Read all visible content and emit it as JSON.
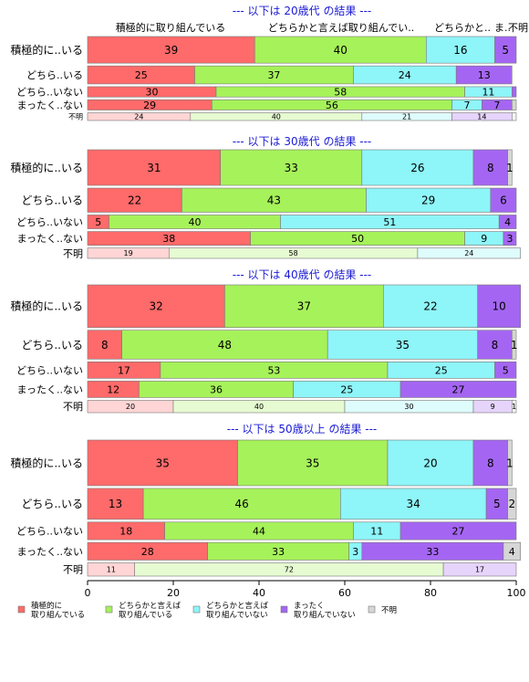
{
  "colors": {
    "積極的に取り組んでいる": "#ff6a6a",
    "どちらかと言えば取り組んでいる": "#a6f25a",
    "どちらかと言えば取り組んでいない": "#8ef5f8",
    "まったく取り組んでいない": "#a466f2",
    "不明": "#d6d6d6",
    "title": "#1a1ad6"
  },
  "column_headers": [
    "積極的に取り組んでいる",
    "どちらかと言えば取り組んでい..",
    "どちらかと..",
    "ま..",
    "不明"
  ],
  "chart_data": {
    "type": "bar",
    "orientation": "horizontal",
    "stacked": true,
    "xlim": [
      0,
      100
    ],
    "x_ticks": [
      0,
      20,
      40,
      60,
      80,
      100
    ],
    "legend": {
      "placement": "bottom",
      "entries": [
        {
          "key": "積極的に取り組んでいる",
          "lines": [
            "積極的に",
            "取り組んでいる"
          ]
        },
        {
          "key": "どちらかと言えば取り組んでいる",
          "lines": [
            "どちらかと言えば",
            "取り組んでいる"
          ]
        },
        {
          "key": "どちらかと言えば取り組んでいない",
          "lines": [
            "どちらかと言えば",
            "取り組んでいない"
          ]
        },
        {
          "key": "まったく取り組んでいない",
          "lines": [
            "まったく",
            "取り組んでいない"
          ]
        },
        {
          "key": "不明",
          "lines": [
            "不明"
          ]
        }
      ]
    },
    "series_keys": [
      "積極的に取り組んでいる",
      "どちらかと言えば取り組んでいる",
      "どちらかと言えば取り組んでいない",
      "まったく取り組んでいない",
      "不明"
    ],
    "panels": [
      {
        "title": "--- 以下は 20歳代 の結果 ---",
        "rows": [
          {
            "label": "積極的に..いる",
            "weight": 0.31,
            "values": [
              39,
              40,
              16,
              5,
              0
            ],
            "labels": [
              "39",
              "40",
              "16",
              "5",
              ""
            ]
          },
          {
            "label": "どちら..いる",
            "weight": 0.21,
            "values": [
              25,
              37,
              24,
              13,
              0
            ],
            "labels": [
              "25",
              "37",
              "24",
              "13",
              ""
            ]
          },
          {
            "label": "どちら..いない",
            "weight": 0.12,
            "values": [
              30,
              58,
              11,
              1,
              0
            ],
            "labels": [
              "30",
              "58",
              "11",
              "",
              ""
            ]
          },
          {
            "label": "まったく..ない",
            "weight": 0.12,
            "values": [
              29,
              56,
              7,
              7,
              1
            ],
            "labels": [
              "29",
              "56",
              "7",
              "7",
              ""
            ]
          },
          {
            "label": "不明",
            "weight": 0.09,
            "values": [
              24,
              40,
              21,
              14,
              1
            ],
            "labels": [
              "24",
              "40",
              "21",
              "14",
              ""
            ]
          }
        ]
      },
      {
        "title": "--- 以下は 30歳代 の結果 ---",
        "rows": [
          {
            "label": "積極的に..いる",
            "weight": 0.31,
            "values": [
              31,
              33,
              26,
              8,
              1
            ],
            "labels": [
              "31",
              "33",
              "26",
              "8",
              "1"
            ]
          },
          {
            "label": "どちら..いる",
            "weight": 0.21,
            "values": [
              22,
              43,
              29,
              6,
              0
            ],
            "labels": [
              "22",
              "43",
              "29",
              "6",
              ""
            ]
          },
          {
            "label": "どちら..いない",
            "weight": 0.12,
            "values": [
              5,
              40,
              51,
              4,
              0
            ],
            "labels": [
              "5",
              "40",
              "51",
              "4",
              ""
            ]
          },
          {
            "label": "まったく..ない",
            "weight": 0.12,
            "values": [
              38,
              50,
              9,
              3,
              0
            ],
            "labels": [
              "38",
              "50",
              "9",
              "3",
              ""
            ]
          },
          {
            "label": "不明",
            "weight": 0.09,
            "values": [
              19,
              58,
              24,
              0,
              0
            ],
            "labels": [
              "19",
              "58",
              "24",
              "",
              ""
            ]
          }
        ]
      },
      {
        "title": "--- 以下は 40歳代 の結果 ---",
        "rows": [
          {
            "label": "積極的に..いる",
            "weight": 0.31,
            "values": [
              32,
              37,
              22,
              10,
              0
            ],
            "labels": [
              "32",
              "37",
              "22",
              "10",
              ""
            ]
          },
          {
            "label": "どちら..いる",
            "weight": 0.21,
            "values": [
              8,
              48,
              35,
              8,
              1
            ],
            "labels": [
              "8",
              "48",
              "35",
              "8",
              "1"
            ]
          },
          {
            "label": "どちら..いない",
            "weight": 0.12,
            "values": [
              17,
              53,
              25,
              5,
              0
            ],
            "labels": [
              "17",
              "53",
              "25",
              "5",
              ""
            ]
          },
          {
            "label": "まったく..ない",
            "weight": 0.12,
            "values": [
              12,
              36,
              25,
              27,
              0
            ],
            "labels": [
              "12",
              "36",
              "25",
              "27",
              ""
            ]
          },
          {
            "label": "不明",
            "weight": 0.09,
            "values": [
              20,
              40,
              30,
              9,
              1
            ],
            "labels": [
              "20",
              "40",
              "30",
              "9",
              "1"
            ]
          }
        ]
      },
      {
        "title": "--- 以下は 50歳以上 の結果 ---",
        "rows": [
          {
            "label": "積極的に..いる",
            "weight": 0.31,
            "values": [
              35,
              35,
              20,
              8,
              1
            ],
            "labels": [
              "35",
              "35",
              "20",
              "8",
              "1"
            ]
          },
          {
            "label": "どちら..いる",
            "weight": 0.21,
            "values": [
              13,
              46,
              34,
              5,
              2
            ],
            "labels": [
              "13",
              "46",
              "34",
              "5",
              "2"
            ]
          },
          {
            "label": "どちら..いない",
            "weight": 0.12,
            "values": [
              18,
              44,
              11,
              27,
              0
            ],
            "labels": [
              "18",
              "44",
              "11",
              "27",
              ""
            ]
          },
          {
            "label": "まったく..ない",
            "weight": 0.12,
            "values": [
              28,
              33,
              3,
              33,
              4
            ],
            "labels": [
              "28",
              "33",
              "3",
              "33",
              "4"
            ]
          },
          {
            "label": "不明",
            "weight": 0.09,
            "values": [
              11,
              72,
              0,
              17,
              0
            ],
            "labels": [
              "11",
              "72",
              "",
              "17",
              ""
            ]
          }
        ]
      }
    ]
  }
}
